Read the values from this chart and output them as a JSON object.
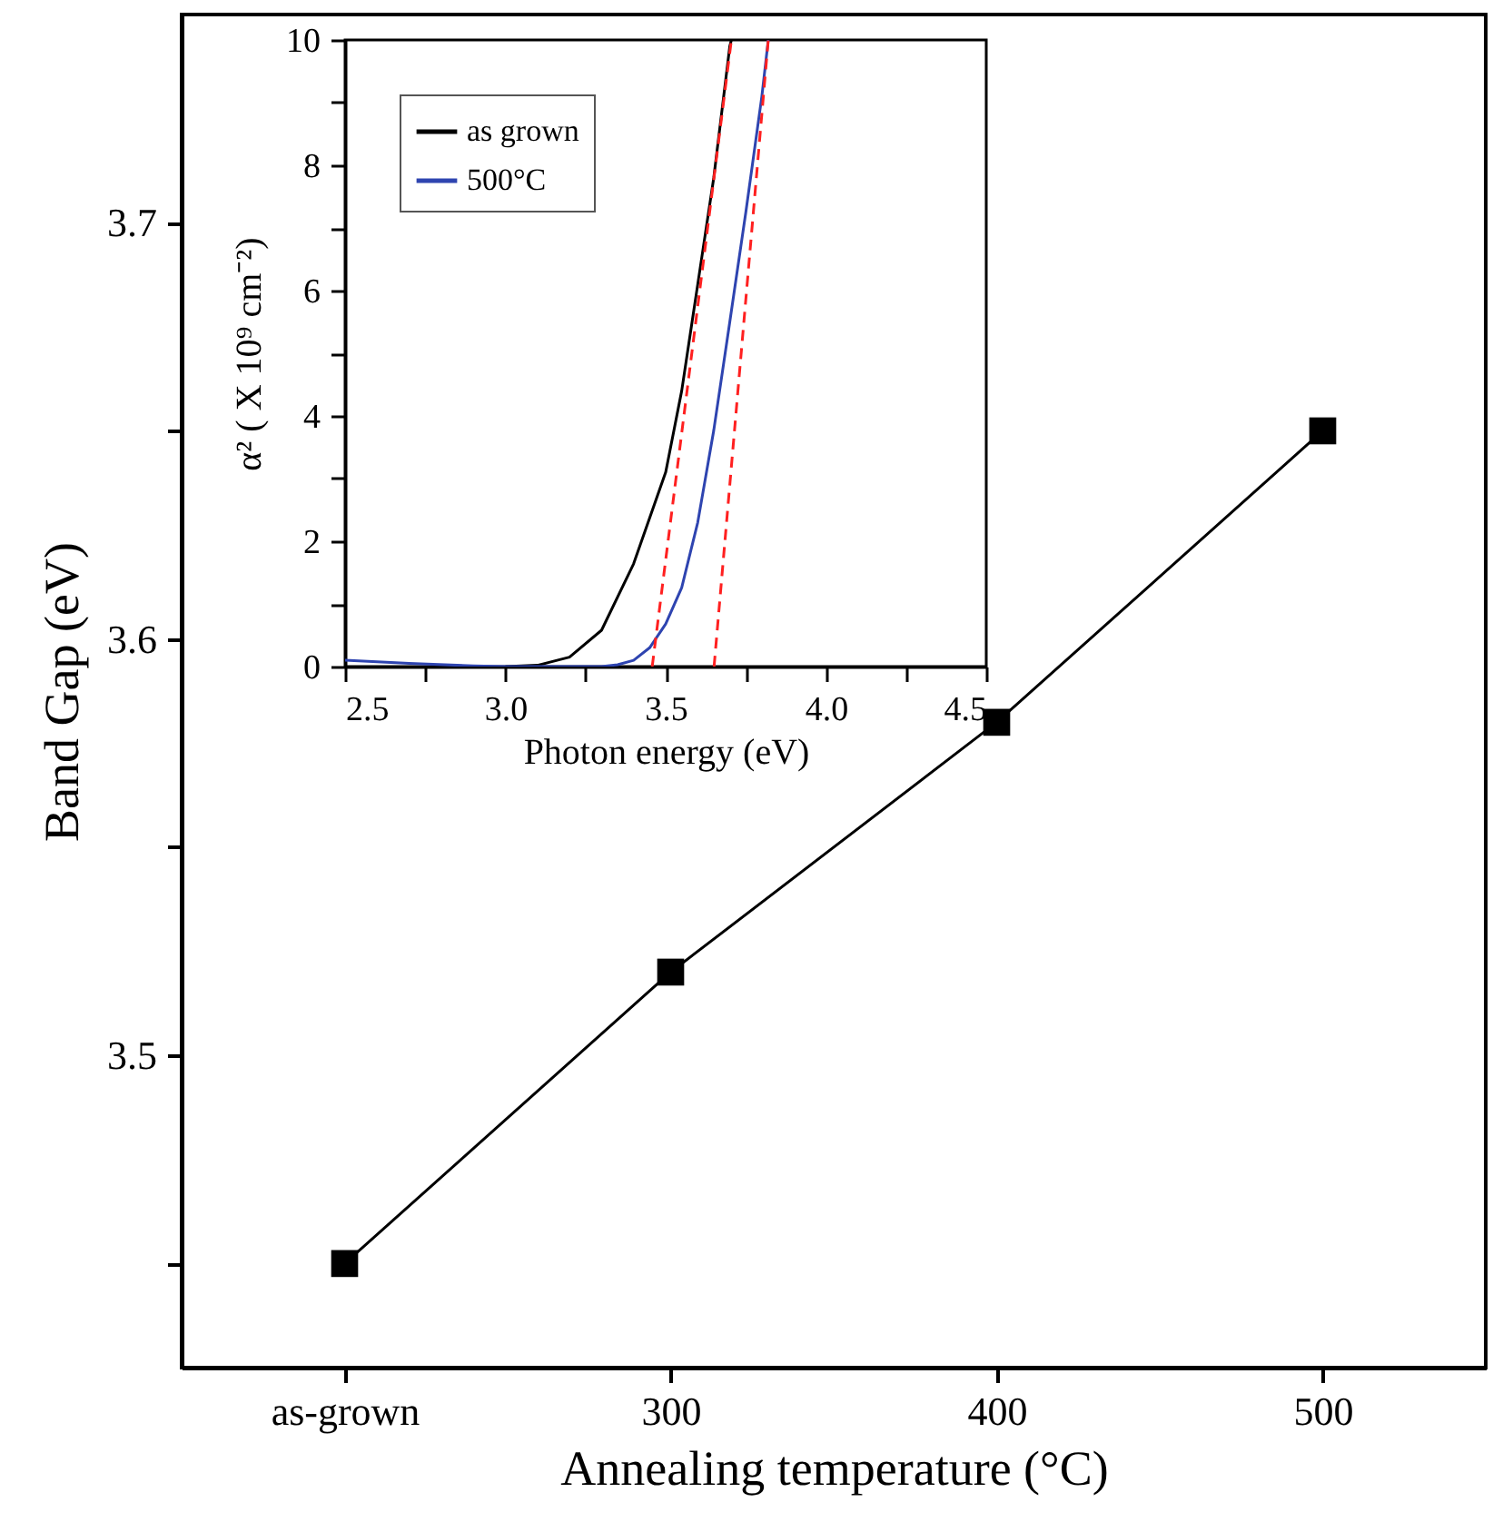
{
  "chart_data": [
    {
      "type": "line",
      "xlabel": "Annealing temperature (°C)",
      "ylabel": "Band Gap (eV)",
      "categories": [
        "as-grown",
        "300",
        "400",
        "500"
      ],
      "series": [
        {
          "color": "#000000",
          "values": [
            3.45,
            3.52,
            3.58,
            3.65
          ]
        }
      ],
      "ylim": [
        3.425,
        3.75
      ],
      "yticks": [
        {
          "value": 3.45,
          "label": null
        },
        3.5,
        {
          "value": 3.55,
          "label": null
        },
        3.6,
        {
          "value": 3.65,
          "label": null
        },
        3.7
      ],
      "marker": "square"
    },
    {
      "type": "line",
      "xlabel": "Photon energy (eV)",
      "ylabel": "α² ( X 10⁹ cm⁻²)",
      "xlim": [
        2.5,
        4.5
      ],
      "xticks": [
        2.5,
        {
          "value": 2.75,
          "label": null
        },
        {
          "value": 3,
          "label": "3.0"
        },
        {
          "value": 3.25,
          "label": null
        },
        3.5,
        {
          "value": 3.75,
          "label": null
        },
        {
          "value": 4,
          "label": "4.0"
        },
        {
          "value": 4.25,
          "label": null
        },
        4.5
      ],
      "ylim": [
        0,
        10
      ],
      "yticks": [
        0,
        {
          "value": 1,
          "label": null
        },
        2,
        {
          "value": 3,
          "label": null
        },
        4,
        {
          "value": 5,
          "label": null
        },
        6,
        {
          "value": 7,
          "label": null
        },
        8,
        {
          "value": 9,
          "label": null
        },
        10
      ],
      "legend": "top left",
      "series": [
        {
          "name": "as grown",
          "color": "#000000",
          "x": [
            3.0,
            3.1,
            3.2,
            3.3,
            3.4,
            3.5,
            3.55,
            3.6,
            3.65,
            3.7,
            3.705
          ],
          "values": [
            0,
            0.02,
            0.15,
            0.58,
            1.64,
            3.1,
            4.4,
            6.1,
            7.8,
            9.9,
            10
          ]
        },
        {
          "name": "500°C",
          "color": "#2e44b0",
          "x": [
            2.5,
            2.7,
            2.9,
            3.0,
            3.3,
            3.35,
            3.4,
            3.45,
            3.5,
            3.55,
            3.6,
            3.65,
            3.7,
            3.75,
            3.8,
            3.82
          ],
          "values": [
            0.1,
            0.05,
            0.01,
            0,
            0,
            0.03,
            0.1,
            0.3,
            0.68,
            1.26,
            2.3,
            3.77,
            5.5,
            7.25,
            9.1,
            10
          ]
        },
        {
          "color": "#ff2020",
          "line_style": "dashed",
          "x": [
            3.458,
            3.705
          ],
          "values": [
            0,
            10
          ]
        },
        {
          "color": "#ff2020",
          "line_style": "dashed",
          "x": [
            3.651,
            3.82
          ],
          "values": [
            0,
            10
          ]
        }
      ]
    }
  ]
}
